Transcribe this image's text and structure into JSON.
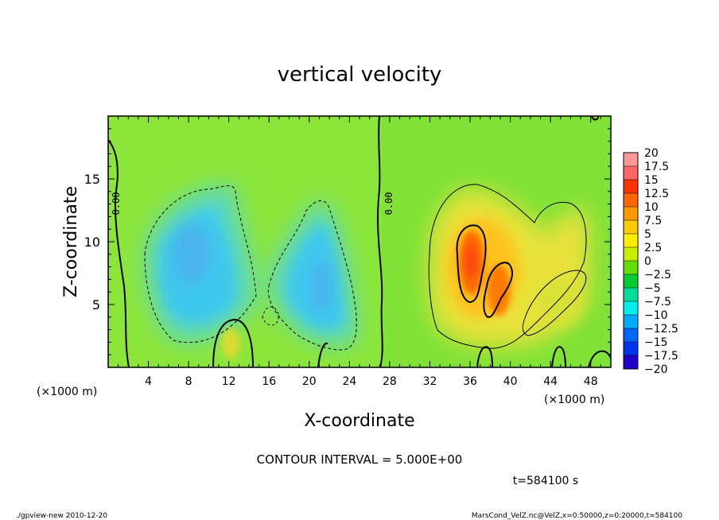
{
  "chart_data": {
    "type": "heatmap",
    "title": "vertical velocity",
    "xlabel": "X-coordinate",
    "ylabel": "Z-coordinate",
    "x_unit_left": "(×1000 m)",
    "x_unit_right": "(×1000 m)",
    "xlim": [
      0,
      50
    ],
    "ylim": [
      0,
      20
    ],
    "x_ticks": [
      4,
      8,
      12,
      16,
      20,
      24,
      28,
      32,
      36,
      40,
      44,
      48
    ],
    "y_ticks": [
      5,
      10,
      15
    ],
    "contour_interval_label": "CONTOUR INTERVAL = 5.000E+00",
    "contour_label": "0.00",
    "time_label": "t=584100 s",
    "colorbar": {
      "labels": [
        "20",
        "17.5",
        "15",
        "12.5",
        "10",
        "7.5",
        "5",
        "2.5",
        "0",
        "−2.5",
        "−5",
        "−7.5",
        "−10",
        "−12.5",
        "−15",
        "−17.5",
        "−20"
      ],
      "colors": [
        "#ff9999",
        "#ff6666",
        "#ff3300",
        "#ff6600",
        "#ff9900",
        "#ffcc00",
        "#ffee00",
        "#ccee00",
        "#66dd00",
        "#00cc33",
        "#00dd99",
        "#00eeee",
        "#00aaff",
        "#0066ff",
        "#0033ee",
        "#2200cc",
        "#6600aa"
      ]
    },
    "features": [
      {
        "kind": "downdraft",
        "center": [
          10,
          9.5
        ],
        "peak": -7
      },
      {
        "kind": "downdraft",
        "center": [
          21.5,
          7.5
        ],
        "peak": -7
      },
      {
        "kind": "updraft",
        "center": [
          35.8,
          9
        ],
        "peak": 13
      },
      {
        "kind": "updraft",
        "center": [
          38.5,
          6
        ],
        "peak": 12
      },
      {
        "kind": "updraft",
        "center": [
          12.2,
          2
        ],
        "peak": 6
      },
      {
        "kind": "updraft",
        "center": [
          44.5,
          4.5
        ],
        "peak": 6
      }
    ]
  },
  "footer": {
    "left": "./gpview-new   2010-12-20",
    "right": "MarsCond_VelZ.nc@VelZ,x=0:50000,z=0:20000,t=584100"
  }
}
